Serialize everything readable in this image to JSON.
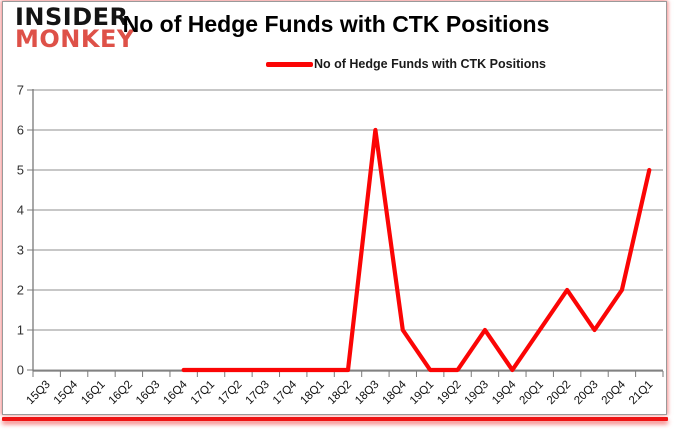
{
  "logo": {
    "line1": "INSIDER",
    "line2": "MONKEY"
  },
  "header": {
    "title": "No of Hedge Funds with CTK Positions"
  },
  "legend": {
    "label": "No of Hedge Funds with CTK Positions"
  },
  "colors": {
    "line": "#fb0505",
    "grid": "#8f8f8f",
    "axis": "#7a7a7a",
    "logo_monkey": "#de5148",
    "accent_bar": "#ee1414"
  },
  "chart_data": {
    "type": "line",
    "title": "No of Hedge Funds with CTK Positions",
    "categories": [
      "15Q3",
      "15Q4",
      "16Q1",
      "16Q2",
      "16Q3",
      "16Q4",
      "17Q1",
      "17Q2",
      "17Q3",
      "17Q4",
      "18Q1",
      "18Q2",
      "18Q3",
      "18Q4",
      "19Q1",
      "19Q2",
      "19Q3",
      "19Q4",
      "20Q1",
      "20Q2",
      "20Q3",
      "20Q4",
      "21Q1"
    ],
    "series": [
      {
        "name": "No of Hedge Funds with CTK Positions",
        "color": "#fb0505",
        "values": [
          null,
          null,
          null,
          null,
          null,
          0,
          0,
          0,
          0,
          0,
          0,
          0,
          6,
          1,
          0,
          0,
          1,
          0,
          1,
          2,
          1,
          2,
          5
        ]
      }
    ],
    "xlabel": "",
    "ylabel": "",
    "ylim": [
      0,
      7
    ],
    "yticks": [
      0,
      1,
      2,
      3,
      4,
      5,
      6,
      7
    ],
    "grid": "horizontal",
    "legend_position": "top-center"
  }
}
